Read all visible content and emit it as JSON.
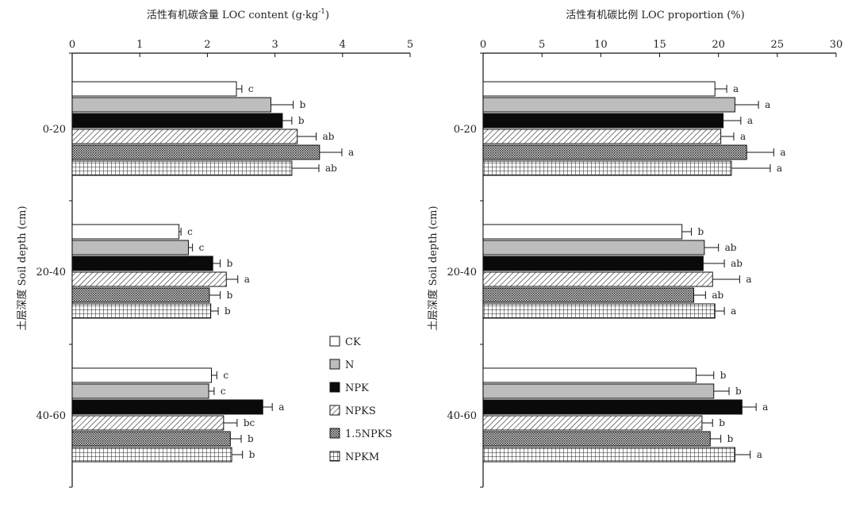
{
  "chart_data": [
    {
      "type": "bar",
      "orientation": "horizontal",
      "title_cn": "活性有机碳含量",
      "title_en": "LOC content (g·kg",
      "title_sup": "-1",
      "title_close": ")",
      "ylabel": "土层深度 Soil depth (cm)",
      "xlim": [
        0,
        5
      ],
      "xticks": [
        "0",
        "1",
        "2",
        "3",
        "4",
        "5"
      ],
      "categories": [
        "0-20",
        "20-40",
        "40-60"
      ],
      "series": [
        {
          "name": "CK",
          "values": [
            2.43,
            1.58,
            2.06
          ],
          "errors": [
            0.08,
            0.03,
            0.08
          ],
          "letters": [
            "c",
            "c",
            "c"
          ]
        },
        {
          "name": "N",
          "values": [
            2.94,
            1.72,
            2.02
          ],
          "errors": [
            0.33,
            0.06,
            0.08
          ],
          "letters": [
            "b",
            "c",
            "c"
          ]
        },
        {
          "name": "NPK",
          "values": [
            3.11,
            2.08,
            2.82
          ],
          "errors": [
            0.14,
            0.11,
            0.14
          ],
          "letters": [
            "b",
            "b",
            "a"
          ]
        },
        {
          "name": "NPKS",
          "values": [
            3.33,
            2.28,
            2.24
          ],
          "errors": [
            0.28,
            0.17,
            0.2
          ],
          "letters": [
            "ab",
            "a",
            "bc"
          ]
        },
        {
          "name": "1.5NPKS",
          "values": [
            3.66,
            2.03,
            2.34
          ],
          "errors": [
            0.33,
            0.16,
            0.16
          ],
          "letters": [
            "a",
            "b",
            "b"
          ]
        },
        {
          "name": "NPKM",
          "values": [
            3.25,
            2.05,
            2.36
          ],
          "errors": [
            0.4,
            0.11,
            0.16
          ],
          "letters": [
            "ab",
            "b",
            "b"
          ]
        }
      ],
      "grid": false,
      "legend_position": "bottom-right"
    },
    {
      "type": "bar",
      "orientation": "horizontal",
      "title": "活性有机碳比例 LOC proportion (%)",
      "ylabel": "土层深度 Soil depth (cm)",
      "xlim": [
        0,
        30
      ],
      "xticks": [
        "0",
        "5",
        "10",
        "15",
        "20",
        "25",
        "30"
      ],
      "categories": [
        "0-20",
        "20-40",
        "40-60"
      ],
      "series": [
        {
          "name": "CK",
          "values": [
            19.7,
            16.9,
            18.1
          ],
          "errors": [
            1.0,
            0.8,
            1.5
          ],
          "letters": [
            "a",
            "b",
            "b"
          ]
        },
        {
          "name": "N",
          "values": [
            21.4,
            18.8,
            19.6
          ],
          "errors": [
            2.0,
            1.2,
            1.3
          ],
          "letters": [
            "a",
            "ab",
            "b"
          ]
        },
        {
          "name": "NPK",
          "values": [
            20.4,
            18.7,
            22.0
          ],
          "errors": [
            1.5,
            1.8,
            1.2
          ],
          "letters": [
            "a",
            "ab",
            "a"
          ]
        },
        {
          "name": "NPKS",
          "values": [
            20.2,
            19.5,
            18.6
          ],
          "errors": [
            1.1,
            2.3,
            0.9
          ],
          "letters": [
            "a",
            "a",
            "b"
          ]
        },
        {
          "name": "1.5NPKS",
          "values": [
            22.4,
            17.9,
            19.3
          ],
          "errors": [
            2.3,
            1.0,
            0.9
          ],
          "letters": [
            "a",
            "ab",
            "b"
          ]
        },
        {
          "name": "NPKM",
          "values": [
            21.1,
            19.7,
            21.4
          ],
          "errors": [
            3.3,
            0.8,
            1.3
          ],
          "letters": [
            "a",
            "a",
            "a"
          ]
        }
      ],
      "grid": false
    }
  ],
  "legend": {
    "items": [
      {
        "name": "CK",
        "fill": "white"
      },
      {
        "name": "N",
        "fill": "gray"
      },
      {
        "name": "NPK",
        "fill": "black"
      },
      {
        "name": "NPKS",
        "fill": "diagonal"
      },
      {
        "name": "1.5NPKS",
        "fill": "dots"
      },
      {
        "name": "NPKM",
        "fill": "grid"
      }
    ]
  },
  "colors": {
    "axis": "#111111",
    "gray_fill": "#bdbdbd",
    "black_fill": "#0a0a0a",
    "ylabel_color": "#6a6a6a"
  }
}
